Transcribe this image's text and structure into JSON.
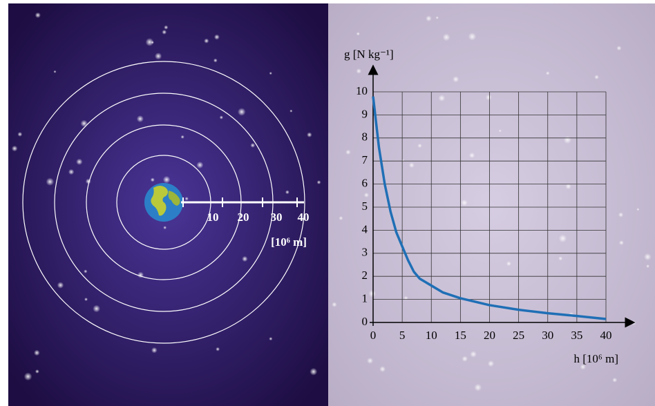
{
  "chart_data": {
    "type": "line",
    "x_label": "h [10⁶ m]",
    "y_label": "g [N kg⁻¹]",
    "x": [
      0,
      1,
      2,
      3,
      4,
      5,
      6,
      7,
      8,
      10,
      12,
      15,
      20,
      25,
      30,
      35,
      40
    ],
    "series": [
      {
        "color": "#1f6fb5",
        "values": [
          9.8,
          7.6,
          6.0,
          4.8,
          3.9,
          3.3,
          2.7,
          2.2,
          1.9,
          1.6,
          1.3,
          1.05,
          0.75,
          0.55,
          0.4,
          0.28,
          0.15
        ]
      }
    ],
    "xlim": [
      0,
      40
    ],
    "ylim": [
      0,
      10
    ],
    "xticks": [
      0,
      5,
      10,
      15,
      20,
      25,
      30,
      35,
      40
    ],
    "yticks": [
      0,
      1,
      2,
      3,
      4,
      5,
      6,
      7,
      8,
      9,
      10
    ],
    "grid": true
  },
  "diagram": {
    "scale_labels": [
      "10",
      "20",
      "30",
      "40"
    ],
    "scale_unit": "[10⁶ m]"
  }
}
